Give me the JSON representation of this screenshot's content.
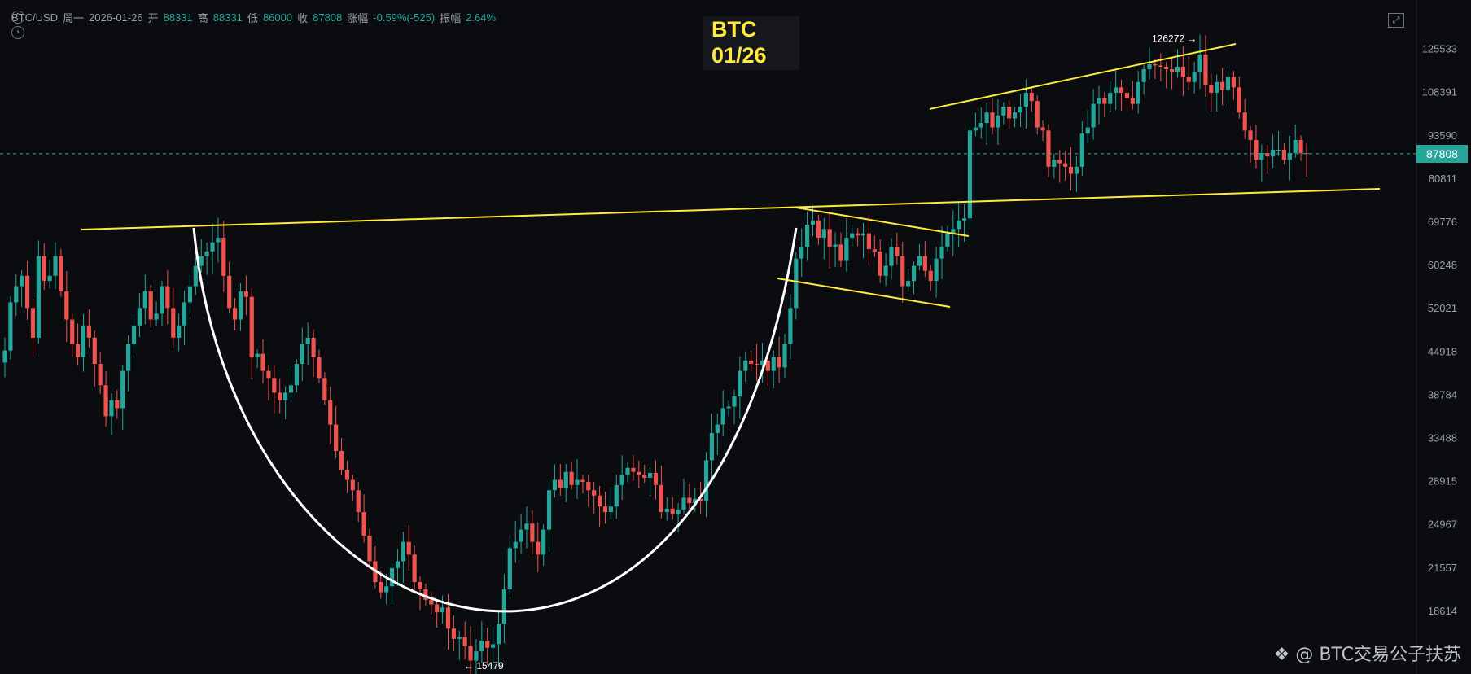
{
  "header": {
    "symbol": "BTC/USD",
    "weekday": "周一",
    "date": "2026-01-26",
    "open_label": "开",
    "open": "88331",
    "high_label": "高",
    "high": "88331",
    "low_label": "低",
    "low": "86000",
    "close_label": "收",
    "close": "87808",
    "change_label": "涨幅",
    "change": "-0.59%(-525)",
    "amplitude_label": "振幅",
    "amplitude": "2.64%"
  },
  "title": {
    "line1": "BTC",
    "line2": "01/26"
  },
  "watermark": "@ BTC交易公子扶苏",
  "icons": {
    "collapse": "chevron-up-icon",
    "expand": "chevron-right-icon",
    "fullscreen": "fullscreen-icon",
    "logo": "diamond-logo-icon"
  },
  "colors": {
    "up": "#26a69a",
    "down": "#ef5350",
    "trendline": "#ffeb3b",
    "cup": "#ffffff",
    "background": "#0b0c0f"
  },
  "chart_data": {
    "type": "candlestick",
    "scale": "log",
    "ylim": [
      15000,
      148000
    ],
    "y_ticks": [
      125533,
      108391,
      93590,
      80811,
      69776,
      60248,
      52021,
      44918,
      38784,
      33488,
      28915,
      24967,
      21557,
      18614
    ],
    "last_price": 87808,
    "high_marker": {
      "label": "126272",
      "value": 126272
    },
    "low_marker": {
      "label": "15479",
      "value": 15479
    },
    "closes": [
      45000,
      53000,
      56000,
      58000,
      52000,
      47000,
      62000,
      57000,
      58000,
      62000,
      55000,
      50000,
      46000,
      44000,
      49000,
      47000,
      43000,
      40000,
      36000,
      38000,
      37000,
      42000,
      46000,
      49000,
      52000,
      55000,
      50000,
      51000,
      56000,
      52000,
      47000,
      49000,
      53000,
      56000,
      60000,
      62000,
      63000,
      65000,
      66000,
      58000,
      52000,
      50000,
      55000,
      54000,
      44000,
      44500,
      42000,
      41000,
      39000,
      38000,
      39000,
      40000,
      43000,
      46000,
      47000,
      44000,
      41000,
      38000,
      35000,
      32000,
      30000,
      29000,
      28000,
      26000,
      24000,
      22000,
      20500,
      19800,
      20200,
      21500,
      22000,
      23500,
      22500,
      20500,
      20000,
      19300,
      19000,
      18500,
      18800,
      17500,
      16900,
      17000,
      16500,
      15700,
      16200,
      16800,
      16400,
      16600,
      17800,
      20000,
      23000,
      23500,
      24500,
      25000,
      23500,
      22500,
      24500,
      28000,
      29000,
      28200,
      29800,
      28500,
      29000,
      28800,
      28000,
      27500,
      26500,
      26000,
      26500,
      28500,
      29500,
      30200,
      29800,
      29500,
      29200,
      29700,
      28500,
      26000,
      26300,
      25800,
      26200,
      27300,
      26800,
      27200,
      27000,
      31000,
      34000,
      35000,
      37000,
      37200,
      38500,
      42000,
      43500,
      43000,
      42800,
      43500,
      42000,
      44000,
      42500,
      46000,
      52000,
      61500,
      64000,
      69000,
      70000,
      66000,
      68000,
      64000,
      64500,
      61000,
      66000,
      67000,
      66500,
      67000,
      63500,
      63000,
      58000,
      60000,
      64000,
      62000,
      56000,
      57000,
      60000,
      62000,
      59000,
      57000,
      61500,
      64000,
      67000,
      68000,
      70000,
      70500,
      95000,
      96000,
      97500,
      101000,
      96000,
      100000,
      103000,
      99000,
      101000,
      103000,
      108000,
      105000,
      96000,
      95000,
      84000,
      86000,
      85000,
      84000,
      82000,
      84000,
      94000,
      96000,
      104000,
      106000,
      104000,
      108000,
      110000,
      108000,
      106000,
      104000,
      112000,
      117000,
      119000,
      118500,
      118000,
      117000,
      116000,
      118000,
      114000,
      112000,
      116000,
      123000,
      111000,
      108000,
      112000,
      109000,
      114000,
      110000,
      101000,
      95000,
      92000,
      86000,
      88000,
      87000,
      89000,
      89000,
      86000,
      88000,
      92000,
      88000,
      87808
    ]
  }
}
